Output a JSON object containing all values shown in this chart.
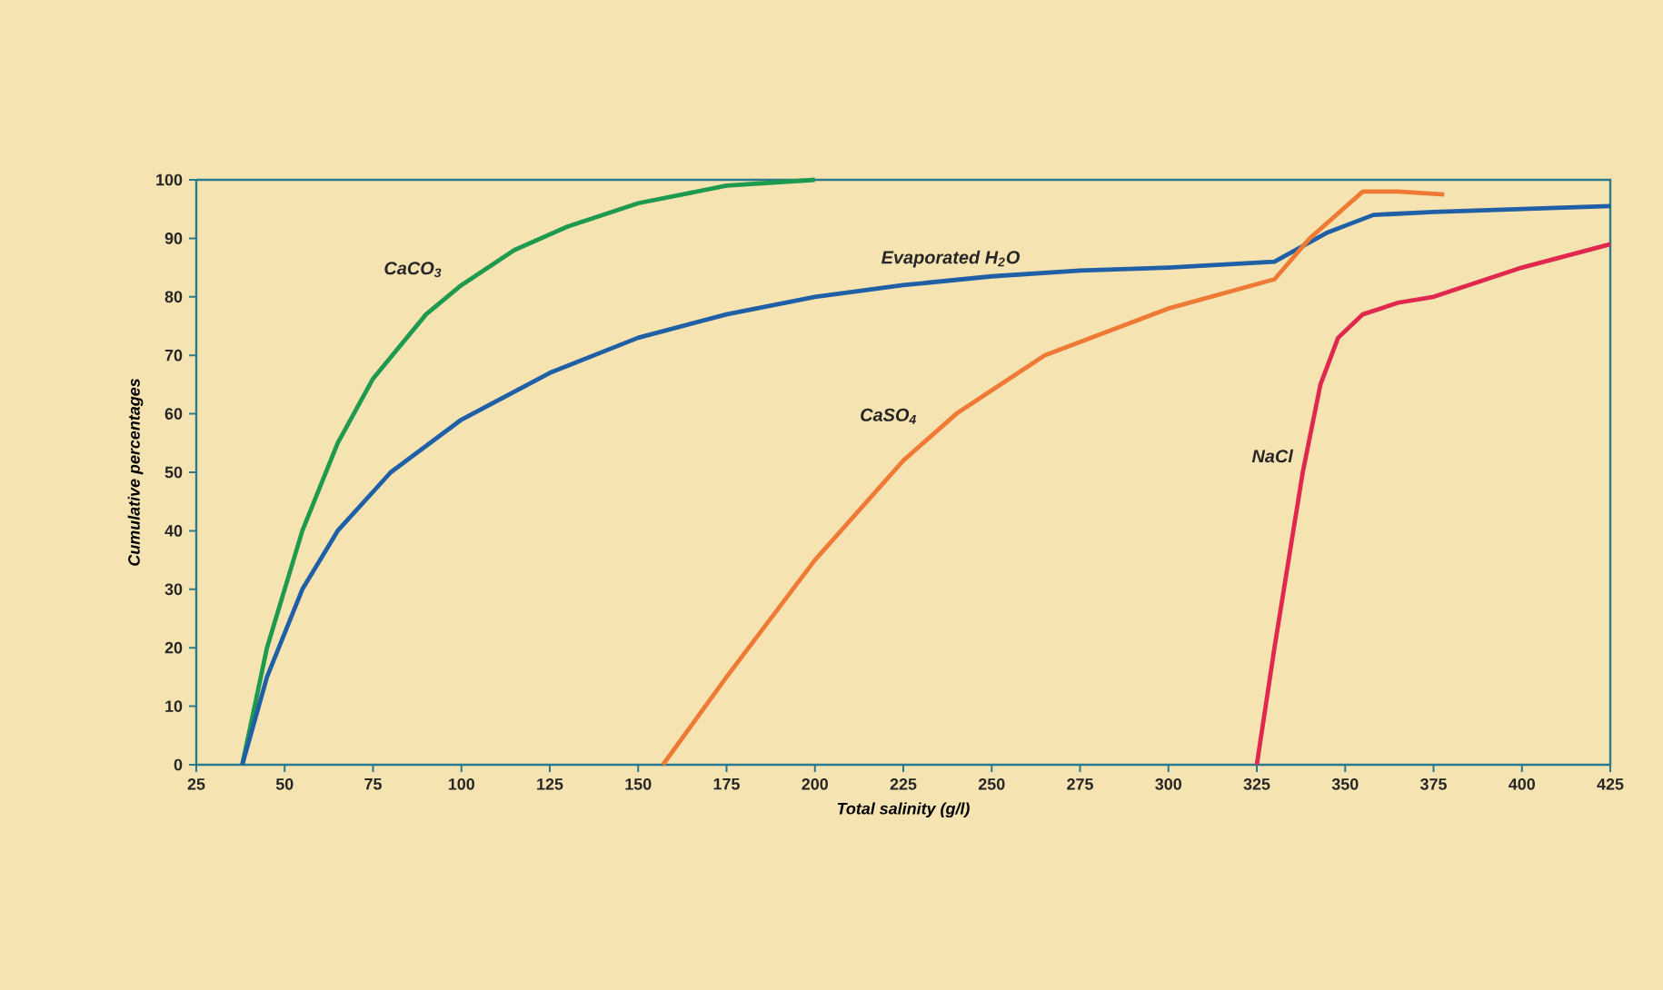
{
  "chart_data": {
    "type": "line",
    "xlabel": "Total salinity (g/l)",
    "ylabel": "Cumulative percentages",
    "xlim": [
      25,
      425
    ],
    "ylim": [
      0,
      100
    ],
    "xticks": [
      25,
      50,
      75,
      100,
      125,
      150,
      175,
      200,
      225,
      250,
      275,
      300,
      325,
      350,
      375,
      400,
      425
    ],
    "yticks": [
      0,
      10,
      20,
      30,
      40,
      50,
      60,
      70,
      80,
      90,
      100
    ],
    "grid": false,
    "legend": false,
    "marker": "none",
    "line_style": "solid",
    "series": [
      {
        "name": "CaCO$_{3}$",
        "color": "#1e9a4e",
        "x": [
          38,
          45,
          55,
          65,
          75,
          90,
          100,
          115,
          130,
          150,
          175,
          200
        ],
        "values": [
          0,
          20,
          40,
          55,
          66,
          77,
          82,
          88,
          92,
          96,
          99,
          100
        ]
      },
      {
        "name": "Evaporated H$_{2}$O",
        "color": "#1f5fa6",
        "x": [
          38,
          45,
          55,
          65,
          80,
          100,
          125,
          150,
          175,
          200,
          225,
          250,
          275,
          300,
          330,
          345,
          358,
          375,
          425
        ],
        "values": [
          0,
          15,
          30,
          40,
          50,
          59,
          67,
          73,
          77,
          80,
          82,
          83.5,
          84.5,
          85,
          86,
          91,
          94,
          94.5,
          95.5
        ]
      },
      {
        "name": "CaSO$_{4}$",
        "color": "#ef7a35",
        "x": [
          157,
          175,
          200,
          225,
          240,
          265,
          300,
          330,
          340,
          355,
          365,
          378
        ],
        "values": [
          0,
          15,
          35,
          52,
          60,
          70,
          78,
          83,
          90,
          98,
          98,
          97.5
        ]
      },
      {
        "name": "NaCl",
        "color": "#e0284f",
        "x": [
          325,
          330,
          338,
          343,
          348,
          355,
          365,
          375,
          400,
          425
        ],
        "values": [
          0,
          20,
          50,
          65,
          73,
          77,
          79,
          80,
          85,
          89
        ]
      }
    ]
  }
}
